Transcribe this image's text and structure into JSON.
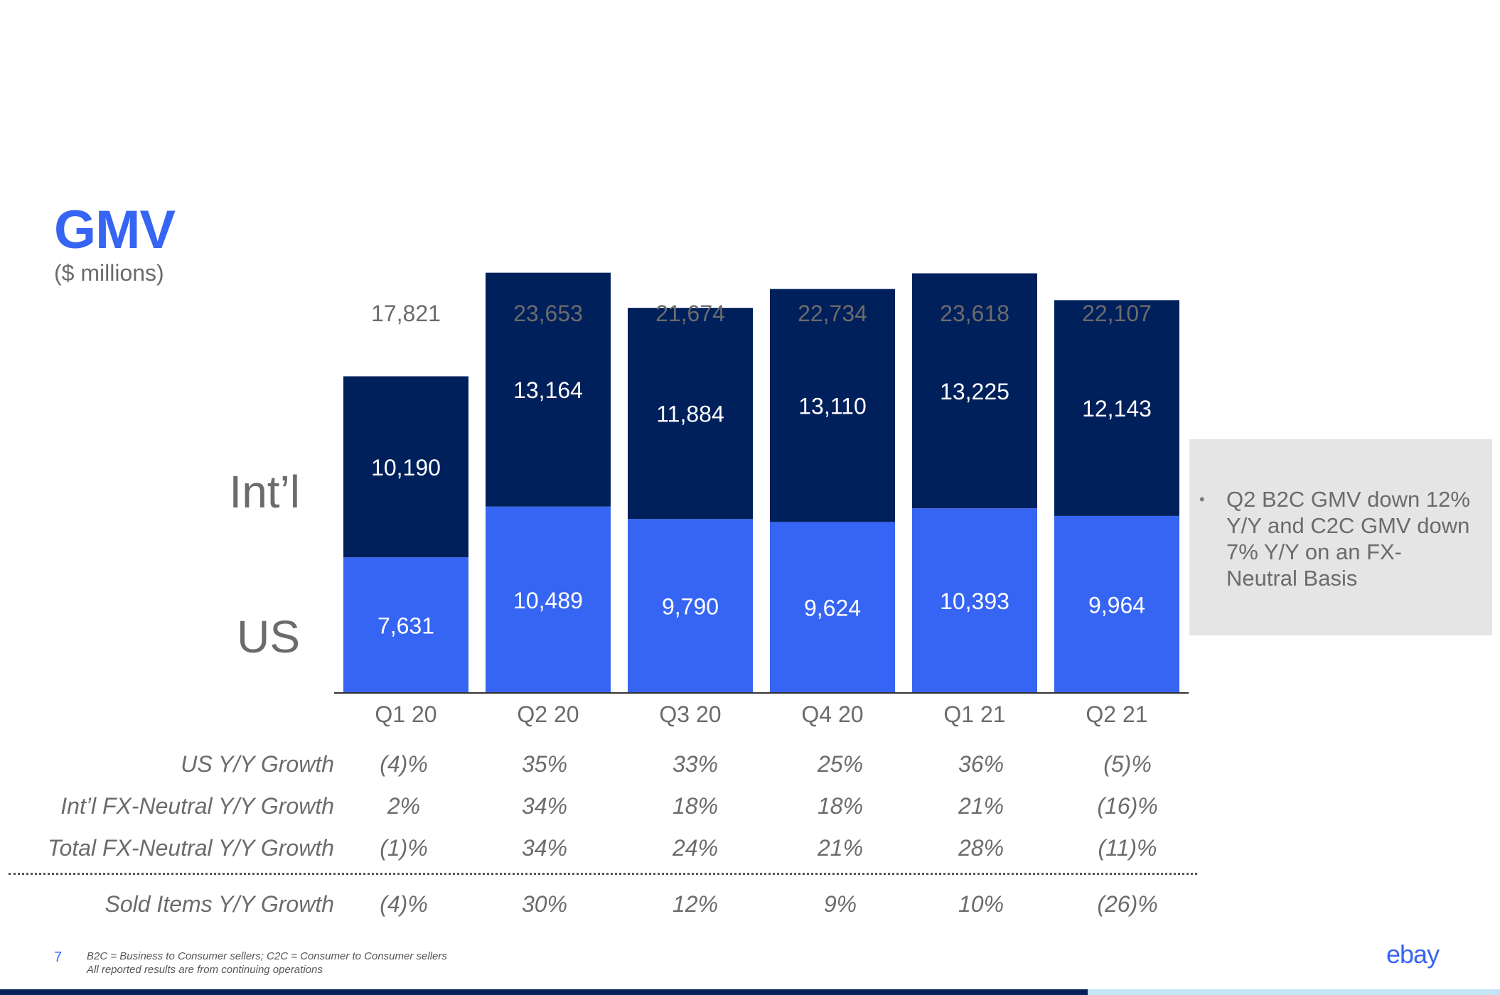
{
  "slide": {
    "title": "GMV",
    "subtitle": "($ millions)",
    "page_number": "7",
    "footnotes": [
      "B2C = Business to Consumer sellers; C2C = Consumer to Consumer sellers",
      "All reported results are from continuing operations"
    ],
    "logo_text": "ebay"
  },
  "callout": {
    "bullet": "•",
    "text": "Q2 B2C GMV down 12% Y/Y and C2C GMV down 7% Y/Y on an FX-Neutral Basis"
  },
  "chart_data": {
    "type": "bar",
    "stacked": true,
    "categories": [
      "Q1 20",
      "Q2 20",
      "Q3 20",
      "Q4 20",
      "Q1 21",
      "Q2 21"
    ],
    "series": [
      {
        "name": "US",
        "color": "#3665f3",
        "values": [
          7631,
          10489,
          9790,
          9624,
          10393,
          9964
        ],
        "labels": [
          "7,631",
          "10,489",
          "9,790",
          "9,624",
          "10,393",
          "9,964"
        ]
      },
      {
        "name": "Int’l",
        "color": "#00205b",
        "values": [
          10190,
          13164,
          11884,
          13110,
          13225,
          12143
        ],
        "labels": [
          "10,190",
          "13,164",
          "11,884",
          "13,110",
          "13,225",
          "12,143"
        ]
      }
    ],
    "totals": [
      "17,821",
      "23,653",
      "21,674",
      "22,734",
      "23,618",
      "22,107"
    ],
    "ylim": [
      0,
      26000
    ],
    "grid": false
  },
  "growth_table": {
    "rows": [
      {
        "label": "US Y/Y Growth",
        "values": [
          "(4)%",
          "35%",
          "33%",
          "25%",
          "36%",
          "(5)%"
        ]
      },
      {
        "label": "Int’l FX-Neutral Y/Y Growth",
        "values": [
          "2%",
          "34%",
          "18%",
          "18%",
          "21%",
          "(16)%"
        ]
      },
      {
        "label": "Total FX-Neutral Y/Y Growth",
        "values": [
          "(1)%",
          "34%",
          "24%",
          "21%",
          "28%",
          "(11)%"
        ]
      },
      {
        "label": "Sold Items Y/Y Growth",
        "values": [
          "(4)%",
          "30%",
          "12%",
          "9%",
          "10%",
          "(26)%"
        ]
      }
    ]
  },
  "colors": {
    "accent": "#3665f3",
    "navy": "#00205b",
    "text_gray": "#6b6b6b"
  }
}
